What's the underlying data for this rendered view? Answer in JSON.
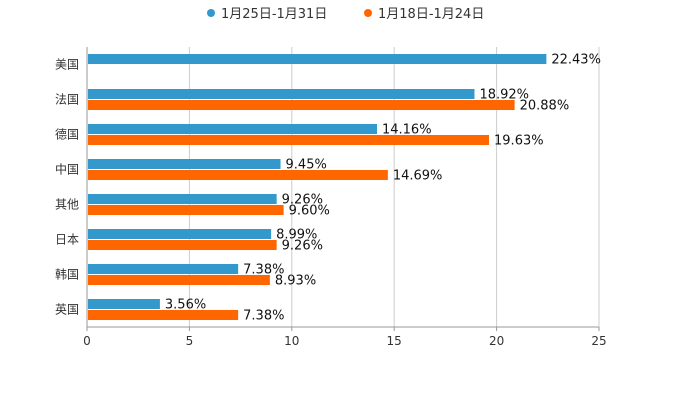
{
  "chart_data": {
    "type": "bar",
    "orientation": "horizontal",
    "categories": [
      "美国",
      "法国",
      "德国",
      "中国",
      "其他",
      "日本",
      "韩国",
      "英国"
    ],
    "series": [
      {
        "name": "1月25日-1月31日",
        "color": "#3399cc",
        "values": [
          22.43,
          18.92,
          14.16,
          9.45,
          9.26,
          8.99,
          7.38,
          3.56
        ],
        "labels": [
          "22.43%",
          "18.92%",
          "14.16%",
          "9.45%",
          "9.26%",
          "8.99%",
          "7.38%",
          "3.56%"
        ]
      },
      {
        "name": "1月18日-1月24日",
        "color": "#ff6600",
        "values": [
          null,
          20.88,
          19.63,
          14.69,
          9.6,
          9.26,
          8.93,
          7.38
        ],
        "labels": [
          "",
          "20.88%",
          "19.63%",
          "14.69%",
          "9.60%",
          "9.26%",
          "8.93%",
          "7.38%"
        ]
      }
    ],
    "xlim": [
      0,
      25
    ],
    "xticks": [
      "0",
      "5",
      "10",
      "15",
      "20",
      "25"
    ],
    "grid": true,
    "legend_position": "top-center",
    "title": "",
    "xlabel": "",
    "ylabel": ""
  }
}
